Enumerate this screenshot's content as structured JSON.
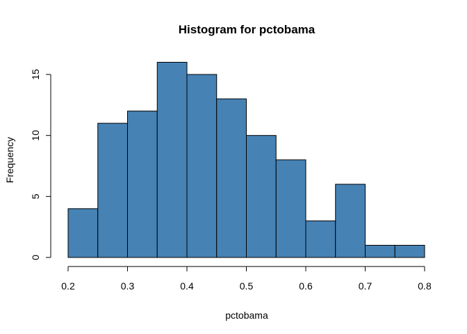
{
  "chart_data": {
    "type": "bar",
    "title": "Histogram for pctobama",
    "xlabel": "pctobama",
    "ylabel": "Frequency",
    "bar_color": "#4682b4",
    "bin_edges": [
      0.2,
      0.25,
      0.3,
      0.35,
      0.4,
      0.45,
      0.5,
      0.55,
      0.6,
      0.65,
      0.7,
      0.75,
      0.8
    ],
    "values": [
      4,
      11,
      12,
      16,
      15,
      13,
      10,
      8,
      3,
      6,
      1,
      1
    ],
    "xlim": [
      0.2,
      0.8
    ],
    "ylim": [
      0,
      16
    ],
    "x_ticks": [
      "0.2",
      "0.3",
      "0.4",
      "0.5",
      "0.6",
      "0.7",
      "0.8"
    ],
    "y_ticks": [
      "0",
      "5",
      "10",
      "15"
    ],
    "grid": false
  }
}
